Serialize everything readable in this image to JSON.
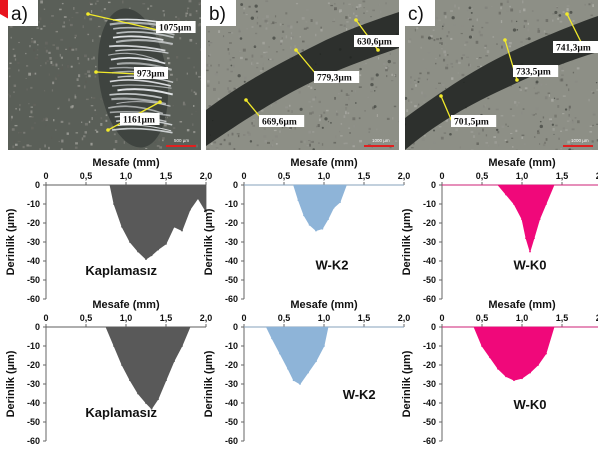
{
  "photos": [
    {
      "panel_label": "a)",
      "measurements": [
        "1075µm",
        "973µm",
        "1161µm"
      ],
      "scale_bar": "500 µm"
    },
    {
      "panel_label": "b)",
      "measurements": [
        "630,6µm",
        "779,3µm",
        "669,6µm"
      ],
      "scale_bar": "1000 µm"
    },
    {
      "panel_label": "c)",
      "measurements": [
        "741,3µm",
        "733,5µm",
        "701,5µm"
      ],
      "scale_bar": "1000 µm"
    }
  ],
  "colors": {
    "kaplamasiz": "#595959",
    "wk2": "#8eb4d8",
    "wk0": "#f0087a"
  },
  "chart_data": [
    {
      "type": "area",
      "name": "Kaplamasız",
      "xlabel": "Mesafe (mm)",
      "ylabel": "Derinlik (µm)",
      "xlim": [
        0,
        2.0
      ],
      "ylim": [
        -60,
        0
      ],
      "xticks": [
        "0",
        "0,5",
        "1,0",
        "1,5",
        "2,0"
      ],
      "yticks": [
        "0",
        "-10",
        "-20",
        "-30",
        "-40",
        "-50",
        "-60"
      ],
      "x": [
        0.0,
        0.8,
        0.85,
        0.95,
        1.05,
        1.15,
        1.25,
        1.32,
        1.4,
        1.5,
        1.6,
        1.7,
        1.8,
        1.9,
        2.0,
        2.0
      ],
      "y": [
        0,
        0,
        -10,
        -22,
        -30,
        -35,
        -39,
        -37,
        -34,
        -31,
        -22,
        -24,
        -13,
        -7,
        -14,
        0
      ],
      "color_key": "kaplamasiz"
    },
    {
      "type": "area",
      "name": "W-K2",
      "xlabel": "Mesafe (mm)",
      "ylabel": "Derinlik (µm)",
      "xlim": [
        0,
        2.0
      ],
      "ylim": [
        -60,
        0
      ],
      "xticks": [
        "0",
        "0,5",
        "1,0",
        "1,5",
        "2,0"
      ],
      "yticks": [
        "0",
        "-10",
        "-20",
        "-30",
        "-40",
        "-50",
        "-60"
      ],
      "x": [
        0.0,
        0.62,
        0.68,
        0.75,
        0.82,
        0.9,
        0.98,
        1.05,
        1.12,
        1.2,
        1.28,
        2.0
      ],
      "y": [
        0,
        0,
        -8,
        -16,
        -21,
        -24,
        -23,
        -18,
        -12,
        -9,
        0,
        0
      ],
      "color_key": "wk2"
    },
    {
      "type": "area",
      "name": "W-K0",
      "xlabel": "Mesafe (mm)",
      "ylabel": "Derinlik (µm)",
      "xlim": [
        0,
        2.0
      ],
      "ylim": [
        -60,
        0
      ],
      "xticks": [
        "0",
        "0,5",
        "1,0",
        "1,5",
        "2,0"
      ],
      "yticks": [
        "0",
        "-10",
        "-20",
        "-30",
        "-40",
        "-50",
        "-60"
      ],
      "x": [
        0.0,
        0.7,
        0.8,
        0.9,
        1.0,
        1.05,
        1.1,
        1.15,
        1.22,
        1.3,
        1.4,
        2.0
      ],
      "y": [
        0,
        0,
        -5,
        -10,
        -18,
        -28,
        -35,
        -28,
        -18,
        -10,
        0,
        0
      ],
      "color_key": "wk0"
    },
    {
      "type": "area",
      "name": "Kaplamasız",
      "xlabel": "Mesafe (mm)",
      "ylabel": "Derinlik (µm)",
      "xlim": [
        0,
        2.0
      ],
      "ylim": [
        -60,
        0
      ],
      "xticks": [
        "0",
        "0,5",
        "1,0",
        "1,5",
        "2,0"
      ],
      "yticks": [
        "0",
        "-10",
        "-20",
        "-30",
        "-40",
        "-50",
        "-60"
      ],
      "x": [
        0.0,
        0.75,
        0.85,
        0.95,
        1.05,
        1.15,
        1.25,
        1.32,
        1.4,
        1.5,
        1.6,
        1.7,
        1.8,
        2.0
      ],
      "y": [
        0,
        0,
        -10,
        -20,
        -28,
        -35,
        -40,
        -43,
        -38,
        -28,
        -18,
        -10,
        0,
        0
      ],
      "color_key": "kaplamasiz"
    },
    {
      "type": "area",
      "name": "W-K2",
      "xlabel": "Mesafe (mm)",
      "ylabel": "Derinlik (µm)",
      "xlim": [
        0,
        2.0
      ],
      "ylim": [
        -60,
        0
      ],
      "xticks": [
        "0",
        "0,5",
        "1,0",
        "1,5",
        "2,0"
      ],
      "yticks": [
        "0",
        "-10",
        "-20",
        "-30",
        "-40",
        "-50",
        "-60"
      ],
      "x": [
        0.0,
        0.28,
        0.35,
        0.45,
        0.55,
        0.62,
        0.7,
        0.8,
        0.9,
        1.0,
        1.05,
        2.0
      ],
      "y": [
        0,
        0,
        -6,
        -14,
        -22,
        -28,
        -30,
        -24,
        -18,
        -10,
        0,
        0
      ],
      "color_key": "wk2"
    },
    {
      "type": "area",
      "name": "W-K0",
      "xlabel": "Mesafe (mm)",
      "ylabel": "Derinlik (µm)",
      "xlim": [
        0,
        2.0
      ],
      "ylim": [
        -60,
        0
      ],
      "xticks": [
        "0",
        "0,5",
        "1,0",
        "1,5",
        "2,0"
      ],
      "yticks": [
        "0",
        "-10",
        "-20",
        "-30",
        "-40",
        "-50",
        "-60"
      ],
      "x": [
        0.0,
        0.4,
        0.5,
        0.6,
        0.7,
        0.8,
        0.9,
        1.0,
        1.1,
        1.2,
        1.3,
        1.4,
        2.0
      ],
      "y": [
        0,
        0,
        -10,
        -16,
        -22,
        -26,
        -28,
        -27,
        -24,
        -20,
        -14,
        0,
        0
      ],
      "color_key": "wk0"
    }
  ]
}
